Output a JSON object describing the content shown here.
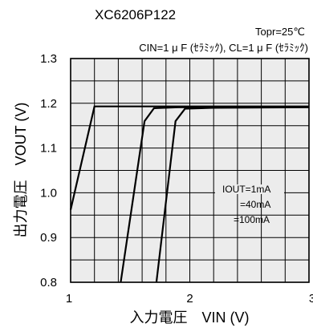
{
  "chart_data": {
    "type": "line",
    "title": "XC6206P122",
    "conditions": {
      "temperature": "Topr=25℃",
      "capacitors": "CIN=1 μ F (ｾﾗﾐｯｸ), CL=1 μ F (ｾﾗﾐｯｸ)"
    },
    "xlabel": "入力電圧　VIN (V)",
    "ylabel": "出力電圧　VOUT (V)",
    "xlim": [
      1,
      3
    ],
    "ylim": [
      0.8,
      1.3
    ],
    "x_ticks": [
      "1",
      "2",
      "3"
    ],
    "y_ticks": [
      "0.8",
      "0.9",
      "1.0",
      "1.1",
      "1.2",
      "1.3"
    ],
    "grid": true,
    "legend_lines": [
      "IOUT=1mA",
      "=40mA",
      "=100mA"
    ],
    "series": [
      {
        "name": "IOUT=1mA",
        "points": [
          [
            1.0,
            0.962
          ],
          [
            1.2,
            1.193
          ],
          [
            1.35,
            1.193
          ],
          [
            3.0,
            1.193
          ]
        ]
      },
      {
        "name": "=40mA",
        "points": [
          [
            1.42,
            0.8
          ],
          [
            1.62,
            1.16
          ],
          [
            1.7,
            1.189
          ],
          [
            1.9,
            1.191
          ],
          [
            3.0,
            1.192
          ]
        ]
      },
      {
        "name": "=100mA",
        "points": [
          [
            1.72,
            0.8
          ],
          [
            1.88,
            1.16
          ],
          [
            1.96,
            1.188
          ],
          [
            2.2,
            1.19
          ],
          [
            3.0,
            1.191
          ]
        ]
      }
    ],
    "colors": {
      "line": "#000000",
      "plot_background": "#ececec"
    }
  }
}
